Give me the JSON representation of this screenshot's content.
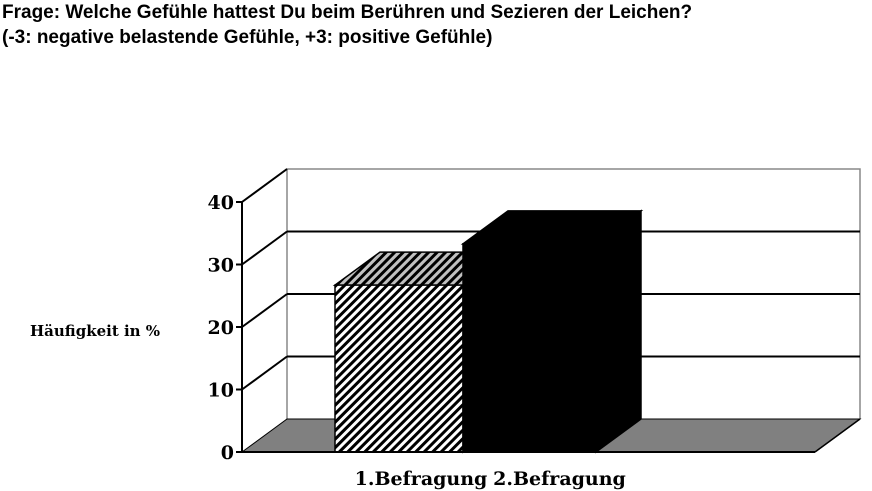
{
  "title_line1": "Frage: Welche Gefühle hattest Du beim Berühren und Sezieren der Leichen?",
  "title_line2": "(-3: negative belastende Gefühle, +3: positive Gefühle)",
  "chart_data": {
    "type": "bar",
    "style": "3d",
    "categories": [
      "1.Befragung",
      "2.Befragung"
    ],
    "values": [
      26.7,
      33.3
    ],
    "ylabel": "Häufigkeit in %",
    "xlabel": "",
    "ylim": [
      0,
      40
    ],
    "yticks": [
      "0",
      "10",
      "20",
      "30",
      "40"
    ],
    "grid": true,
    "bar_fills": [
      "diagonal-hatch",
      "#000000"
    ],
    "floor_color": "#808080"
  }
}
